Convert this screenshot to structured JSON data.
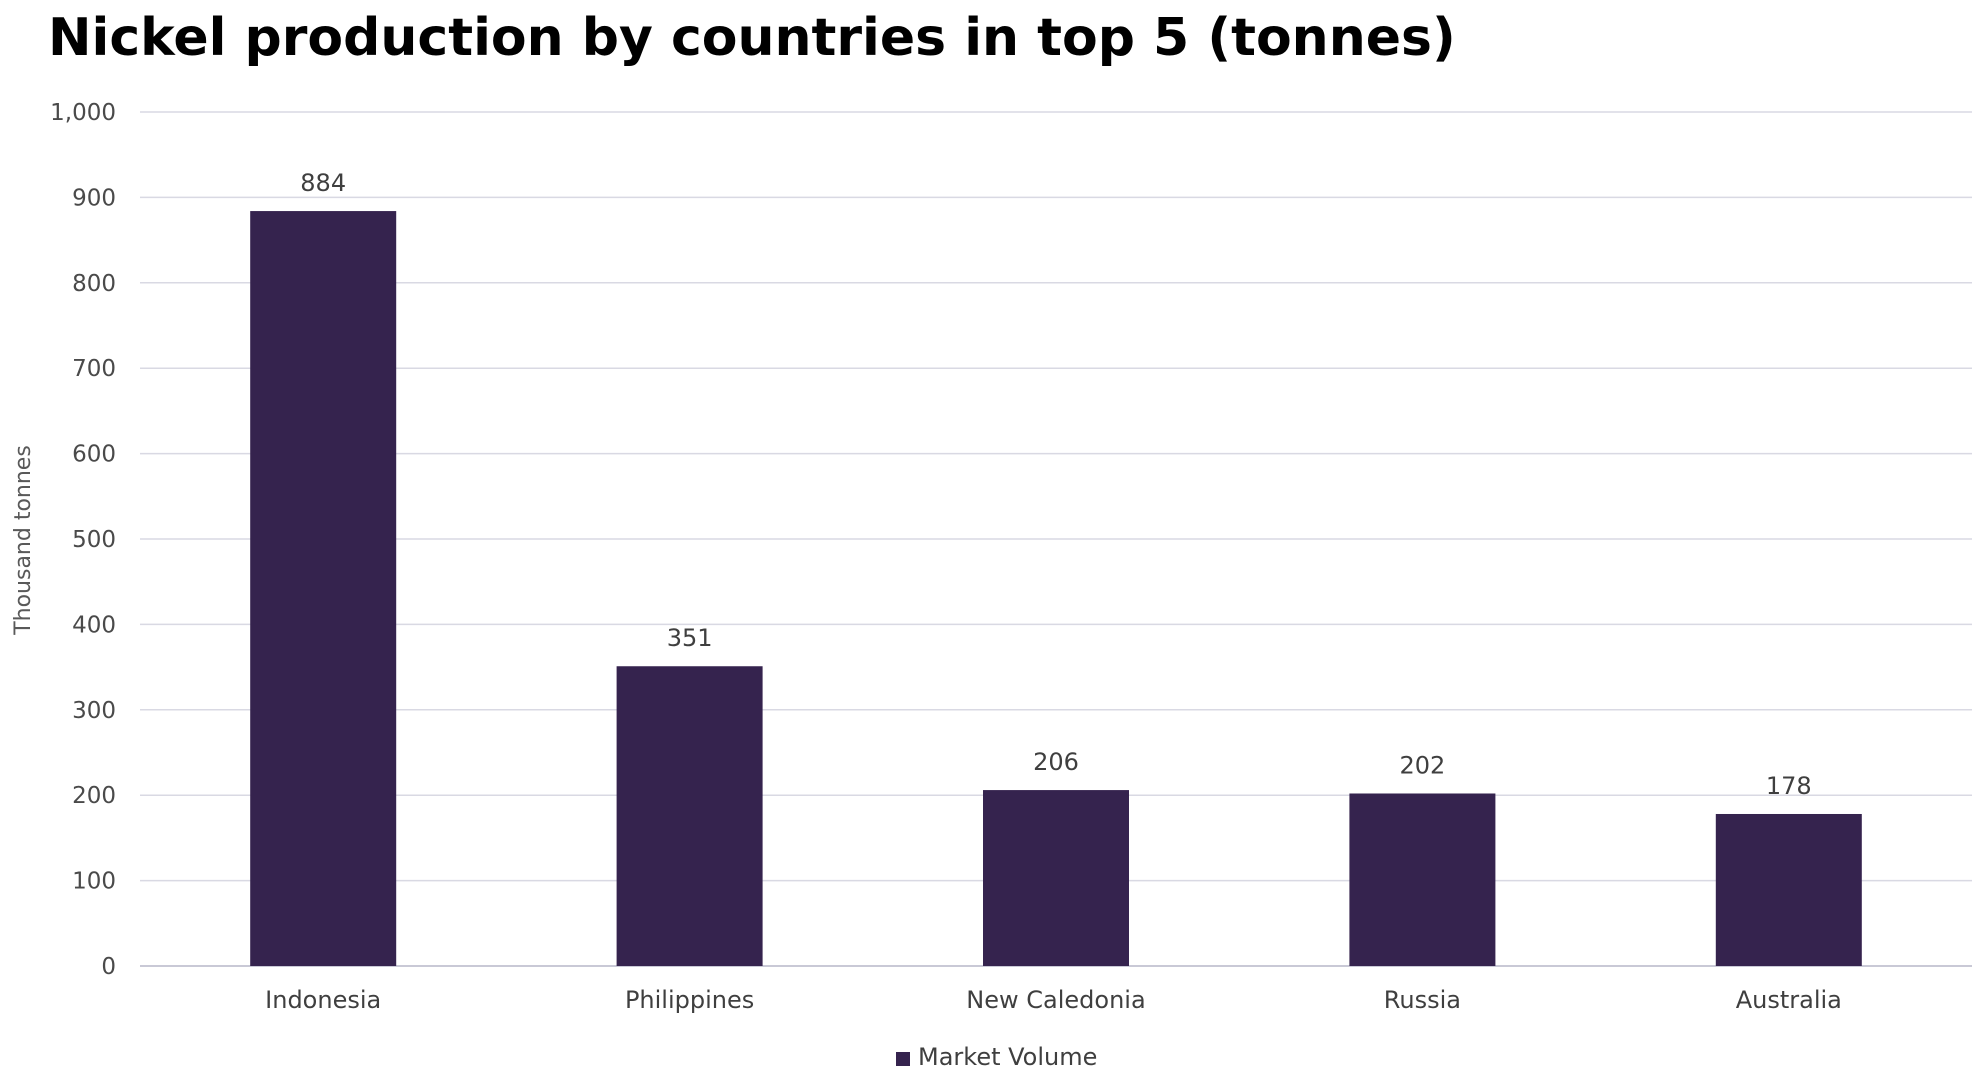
{
  "chart_data": {
    "type": "bar",
    "title": "Nickel production by countries in top 5 (tonnes)",
    "xlabel": "",
    "ylabel": "Thousand tonnes",
    "ylim": [
      0,
      1000
    ],
    "yticks": [
      0,
      100,
      200,
      300,
      400,
      500,
      600,
      700,
      800,
      900,
      1000
    ],
    "ytick_labels": [
      "0",
      "100",
      "200",
      "300",
      "400",
      "500",
      "600",
      "700",
      "800",
      "900",
      "1,000"
    ],
    "categories": [
      "Indonesia",
      "Philippines",
      "New Caledonia",
      "Russia",
      "Australia"
    ],
    "series": [
      {
        "name": "Market Volume",
        "values": [
          884,
          351,
          206,
          202,
          178
        ],
        "data_labels": [
          "884",
          "351",
          "206",
          "202",
          "178"
        ],
        "color": "#35234e"
      }
    ],
    "grid": true,
    "legend": "bottom-center"
  },
  "colors": {
    "bar": "#35234e",
    "gridline": "#d9d9e3",
    "axis_text": "#4a4a4a"
  }
}
